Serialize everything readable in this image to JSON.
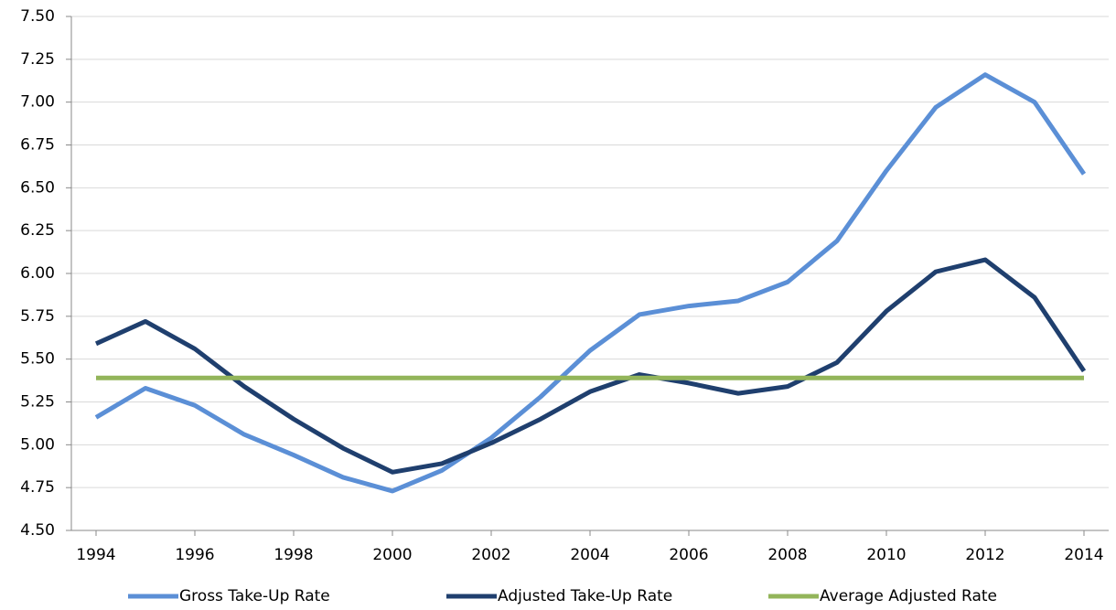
{
  "chart_data": {
    "type": "line",
    "x": [
      1994,
      1995,
      1996,
      1997,
      1998,
      1999,
      2000,
      2001,
      2002,
      2003,
      2004,
      2005,
      2006,
      2007,
      2008,
      2009,
      2010,
      2011,
      2012,
      2013,
      2014
    ],
    "series": [
      {
        "name": "Gross Take-Up Rate",
        "color": "#5b8fd6",
        "values": [
          5.16,
          5.33,
          5.23,
          5.06,
          4.94,
          4.81,
          4.73,
          4.85,
          5.04,
          5.28,
          5.55,
          5.76,
          5.81,
          5.84,
          5.95,
          6.19,
          6.6,
          6.97,
          7.16,
          7.0,
          6.58
        ]
      },
      {
        "name": "Adjusted Take-Up Rate",
        "color": "#1f3f6e",
        "values": [
          5.59,
          5.72,
          5.56,
          5.34,
          5.15,
          4.98,
          4.84,
          4.89,
          5.01,
          5.15,
          5.31,
          5.41,
          5.36,
          5.3,
          5.34,
          5.48,
          5.78,
          6.01,
          6.08,
          5.86,
          5.43
        ]
      },
      {
        "name": "Average Adjusted Rate",
        "color": "#93b55a",
        "values": [
          5.39,
          5.39,
          5.39,
          5.39,
          5.39,
          5.39,
          5.39,
          5.39,
          5.39,
          5.39,
          5.39,
          5.39,
          5.39,
          5.39,
          5.39,
          5.39,
          5.39,
          5.39,
          5.39,
          5.39,
          5.39
        ]
      }
    ],
    "xlim": [
      1993.5,
      2014.5
    ],
    "xticks": [
      1994,
      1996,
      1998,
      2000,
      2002,
      2004,
      2006,
      2008,
      2010,
      2012,
      2014
    ],
    "ylim": [
      4.5,
      7.5
    ],
    "yticks": [
      {
        "value": 4.5,
        "label": "4.50"
      },
      {
        "value": 4.75,
        "label": "4.75"
      },
      {
        "value": 5,
        "label": "5.00"
      },
      {
        "value": 5.25,
        "label": "5.25"
      },
      {
        "value": 5.5,
        "label": "5.50"
      },
      {
        "value": 5.75,
        "label": "5.75"
      },
      {
        "value": 6,
        "label": "6.00"
      },
      {
        "value": 6.25,
        "label": "6.25"
      },
      {
        "value": 6.5,
        "label": "6.50"
      },
      {
        "value": 6.75,
        "label": "6.75"
      },
      {
        "value": 7,
        "label": "7.00"
      },
      {
        "value": 7.25,
        "label": "7.25"
      },
      {
        "value": 7.5,
        "label": "7.50"
      }
    ],
    "grid": true,
    "legend": "bottom"
  }
}
